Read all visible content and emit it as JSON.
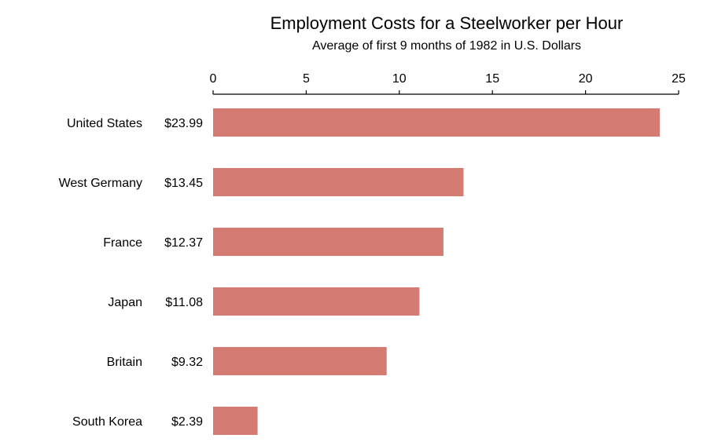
{
  "chart_data": {
    "type": "bar",
    "orientation": "horizontal",
    "title": "Employment Costs for a Steelworker per Hour",
    "subtitle": "Average of first 9 months of 1982 in U.S. Dollars",
    "categories": [
      "United States",
      "West Germany",
      "France",
      "Japan",
      "Britain",
      "South Korea"
    ],
    "values": [
      23.99,
      13.45,
      12.37,
      11.08,
      9.32,
      2.39
    ],
    "value_labels": [
      "$23.99",
      "$13.45",
      "$12.37",
      "$11.08",
      "$9.32",
      "$2.39"
    ],
    "xlim": [
      0,
      25
    ],
    "xticks": [
      0,
      5,
      10,
      15,
      20,
      25
    ],
    "xtick_labels": [
      "0",
      "5",
      "10",
      "15",
      "20",
      "25"
    ],
    "axis_position": "top",
    "bar_color": "#d47b73",
    "axis_color": "#000000",
    "grid": false
  }
}
